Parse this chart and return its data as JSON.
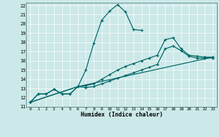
{
  "xlabel": "Humidex (Indice chaleur)",
  "bg_color": "#cce8e8",
  "grid_color": "#aacccc",
  "line_color": "#006666",
  "xlim": [
    -0.5,
    23.5
  ],
  "ylim": [
    11,
    22.3
  ],
  "xticks": [
    0,
    1,
    2,
    3,
    4,
    5,
    6,
    7,
    8,
    9,
    10,
    11,
    12,
    13,
    14,
    15,
    16,
    17,
    18,
    19,
    20,
    21,
    22,
    23
  ],
  "yticks": [
    11,
    12,
    13,
    14,
    15,
    16,
    17,
    18,
    19,
    20,
    21,
    22
  ],
  "s1x": [
    0,
    1,
    2,
    3,
    4,
    5,
    6,
    7,
    8,
    9,
    10,
    11,
    12,
    13,
    14
  ],
  "s1y": [
    11.5,
    12.4,
    12.4,
    12.9,
    12.4,
    12.4,
    13.2,
    15.0,
    17.9,
    20.4,
    21.4,
    22.1,
    21.3,
    19.4,
    19.3
  ],
  "s2x": [
    0,
    1,
    2,
    3,
    4,
    5,
    6,
    7,
    8,
    9,
    10,
    11,
    12,
    13,
    14,
    15,
    16,
    17,
    18,
    19,
    20,
    21,
    22,
    23
  ],
  "s2y": [
    11.5,
    12.4,
    12.4,
    12.9,
    12.4,
    12.4,
    13.2,
    13.3,
    13.5,
    14.0,
    14.5,
    15.0,
    15.4,
    15.7,
    16.0,
    16.3,
    16.6,
    18.3,
    18.5,
    17.3,
    16.6,
    16.5,
    16.4,
    16.4
  ],
  "s3x": [
    0,
    6,
    7,
    8,
    9,
    10,
    11,
    12,
    13,
    14,
    15,
    16,
    17,
    18,
    19,
    20,
    21,
    22,
    23
  ],
  "s3y": [
    11.5,
    13.2,
    13.1,
    13.2,
    13.5,
    13.8,
    14.1,
    14.4,
    14.7,
    15.0,
    15.3,
    15.6,
    17.3,
    17.6,
    17.1,
    16.5,
    16.3,
    16.3,
    16.3
  ],
  "s4x": [
    0,
    6,
    23
  ],
  "s4y": [
    11.5,
    13.2,
    16.4
  ]
}
